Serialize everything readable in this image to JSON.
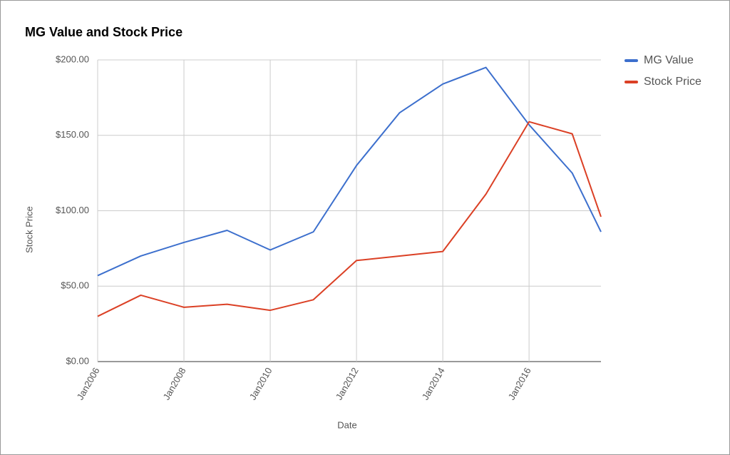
{
  "chart_data": {
    "type": "line",
    "title": "MG Value and Stock Price",
    "xlabel": "Date",
    "ylabel": "Stock Price",
    "x": [
      "2006-01",
      "2007-01",
      "2008-01",
      "2009-01",
      "2010-01",
      "2011-01",
      "2012-01",
      "2013-01",
      "2014-01",
      "2015-01",
      "2016-01",
      "2017-01",
      "2017-09"
    ],
    "series": [
      {
        "name": "MG Value",
        "color": "#3c6fcd",
        "values": [
          57,
          70,
          79,
          87,
          74,
          86,
          130,
          165,
          184,
          195,
          157,
          125,
          86
        ]
      },
      {
        "name": "Stock Price",
        "color": "#db4025",
        "values": [
          30,
          44,
          36,
          38,
          34,
          41,
          67,
          70,
          73,
          111,
          159,
          151,
          96
        ]
      }
    ],
    "xlim": [
      "2006-01",
      "2017-09"
    ],
    "xticks": [
      {
        "value": "2006-01",
        "label": "Jan2006"
      },
      {
        "value": "2008-01",
        "label": "Jan2008"
      },
      {
        "value": "2010-01",
        "label": "Jan2010"
      },
      {
        "value": "2012-01",
        "label": "Jan2012"
      },
      {
        "value": "2014-01",
        "label": "Jan2014"
      },
      {
        "value": "2016-01",
        "label": "Jan2016"
      }
    ],
    "ylim": [
      0,
      200
    ],
    "yticks": [
      {
        "value": 0,
        "label": "$0.00"
      },
      {
        "value": 50,
        "label": "$50.00"
      },
      {
        "value": 100,
        "label": "$100.00"
      },
      {
        "value": 150,
        "label": "$150.00"
      },
      {
        "value": 200,
        "label": "$200.00"
      }
    ],
    "grid": true,
    "legend": "right"
  }
}
